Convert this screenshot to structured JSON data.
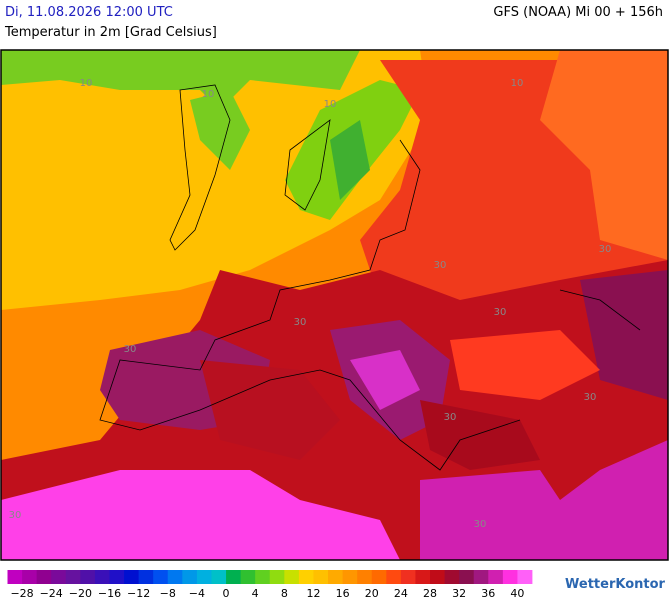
{
  "header": {
    "datetime": "Di, 11.08.2026 12:00 UTC",
    "model": "GFS (NOAA) Mi 00 + 156h",
    "subtitle": "Temperatur in 2m [Grad Celsius]"
  },
  "map": {
    "contour_labels": [
      "10",
      "10",
      "10",
      "10",
      "30",
      "30",
      "30",
      "30",
      "30",
      "30",
      "30",
      "30",
      "30"
    ]
  },
  "legend": {
    "colors": [
      "#c000c0",
      "#a800a8",
      "#900090",
      "#7a0a9a",
      "#66129f",
      "#5010a8",
      "#3a10b8",
      "#2010c8",
      "#0010d0",
      "#0030e0",
      "#0050f0",
      "#0078f0",
      "#0098e8",
      "#00b0e0",
      "#00c0c8",
      "#00b050",
      "#30c030",
      "#60d020",
      "#90dc10",
      "#c8e000",
      "#ffd000",
      "#ffc000",
      "#ffaa00",
      "#ff9600",
      "#ff8000",
      "#ff6a00",
      "#ff4a10",
      "#f03020",
      "#d81818",
      "#c00c18",
      "#a00a30",
      "#8a1050",
      "#a01880",
      "#d020b0",
      "#ff30e0",
      "#ff60f8"
    ],
    "labels": [
      "−28",
      "−24",
      "−20",
      "−16",
      "−12",
      "−8",
      "−4",
      "0",
      "4",
      "8",
      "12",
      "16",
      "20",
      "24",
      "28",
      "32",
      "36",
      "40"
    ]
  },
  "logo": "WetterKontor"
}
